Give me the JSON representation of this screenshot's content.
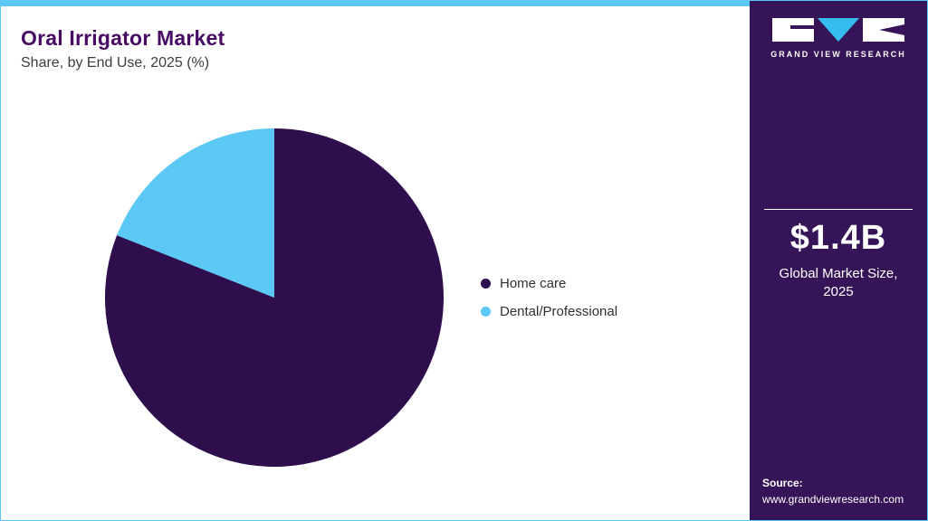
{
  "header": {
    "title": "Oral Irrigator Market",
    "subtitle": "Share, by End Use, 2025 (%)"
  },
  "chart_data": {
    "type": "pie",
    "title": "Oral Irrigator Market Share, by End Use, 2025 (%)",
    "labels": [
      "Home care",
      "Dental/Professional"
    ],
    "values": [
      81,
      19
    ],
    "colors": [
      "#2E0E4D",
      "#5BC8F5"
    ],
    "start_angle_deg": 0,
    "direction": "clockwise",
    "legend_position": "right",
    "data_labels_shown": false
  },
  "sidebar": {
    "brand_name": "GRAND VIEW RESEARCH",
    "market_size": "$1.4B",
    "market_size_label": "Global Market Size, 2025",
    "source_label": "Source:",
    "source_url": "www.grandviewresearch.com"
  },
  "colors": {
    "accent_cyan": "#5BC8F5",
    "sidebar_purple": "#351457",
    "pie_purple": "#2E0E4D",
    "title_purple": "#470B63"
  }
}
